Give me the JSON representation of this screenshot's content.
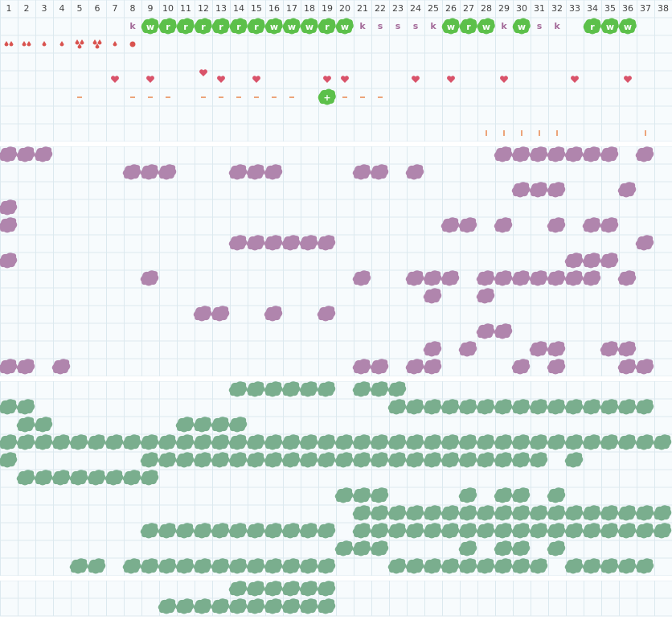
{
  "columns": [
    1,
    2,
    3,
    4,
    5,
    6,
    7,
    8,
    9,
    10,
    11,
    12,
    13,
    14,
    15,
    16,
    17,
    18,
    19,
    20,
    21,
    22,
    23,
    24,
    25,
    26,
    27,
    28,
    29,
    30,
    31,
    32,
    33,
    34,
    35,
    36,
    37,
    38
  ],
  "markers": [
    null,
    null,
    null,
    null,
    null,
    null,
    null,
    "k",
    "w",
    "r",
    "r",
    "r",
    "r",
    "r",
    "r",
    "w",
    "w",
    "w",
    "r",
    "w",
    "k",
    "s",
    "s",
    "s",
    "k",
    "w",
    "r",
    "w",
    "k",
    "w",
    "s",
    "k",
    null,
    "r",
    "w",
    "w",
    null,
    null
  ],
  "badge_row": [
    null,
    null,
    null,
    null,
    null,
    null,
    null,
    null,
    null,
    null,
    null,
    null,
    null,
    null,
    null,
    null,
    null,
    null,
    "+",
    null,
    null,
    null,
    null,
    null,
    null,
    null,
    null,
    null,
    null,
    null,
    null,
    null,
    null,
    null,
    null,
    null,
    null,
    null
  ]
}
